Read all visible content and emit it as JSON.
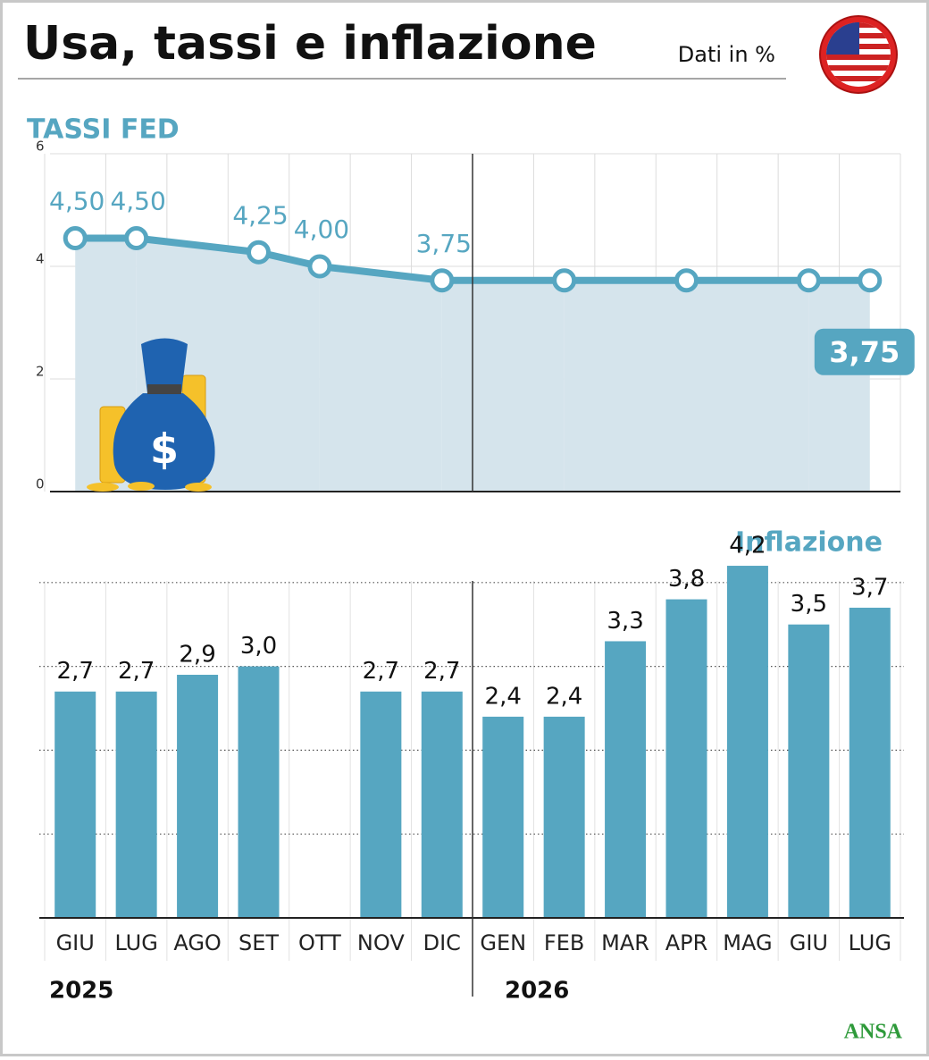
{
  "title": "Usa, tassi e inflazione",
  "subtitle": "Dati in %",
  "source": "ANSA",
  "years": [
    "2025",
    "2026"
  ],
  "chart_data": [
    {
      "type": "line",
      "title": "TASSI FED",
      "color": "#56a6c1",
      "area_color": "#d5e4ec",
      "values": [
        4.5,
        4.5,
        null,
        4.25,
        4.0,
        null,
        3.75,
        null,
        3.75,
        null,
        3.75,
        null,
        3.75,
        3.75
      ],
      "value_labels": [
        "4,50",
        "4,50",
        null,
        "4,25",
        "4,00",
        null,
        "3,75",
        null,
        null,
        null,
        null,
        null,
        null,
        "3,75"
      ],
      "ylim": [
        0,
        6
      ],
      "yticks": [
        0,
        2,
        4,
        6
      ],
      "grid": true
    },
    {
      "type": "bar",
      "title": "Inflazione",
      "color": "#56a6c1",
      "categories": [
        "GIU",
        "LUG",
        "AGO",
        "SET",
        "OTT",
        "NOV",
        "DIC",
        "GEN",
        "FEB",
        "MAR",
        "APR",
        "MAG",
        "GIU",
        "LUG"
      ],
      "values": [
        2.7,
        2.7,
        2.9,
        3.0,
        null,
        2.7,
        2.7,
        2.4,
        2.4,
        3.3,
        3.8,
        4.2,
        3.5,
        3.7
      ],
      "value_labels": [
        "2,7",
        "2,7",
        "2,9",
        "3,0",
        null,
        "2,7",
        "2,7",
        "2,4",
        "2,4",
        "3,3",
        "3,8",
        "4,2",
        "3,5",
        "3,7"
      ],
      "ylim": [
        0,
        5
      ],
      "yticks": [
        1,
        2,
        3,
        4
      ],
      "grid": true,
      "show_ytick_labels": false
    }
  ]
}
